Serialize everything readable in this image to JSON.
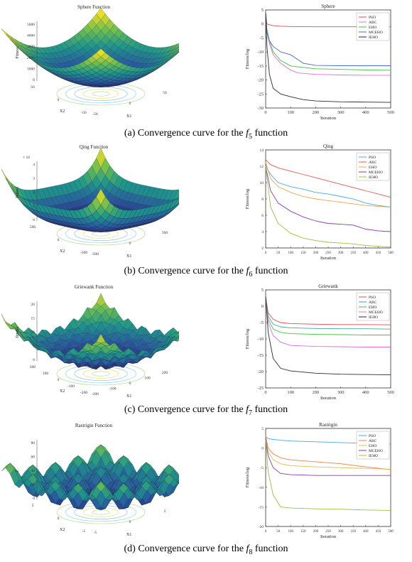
{
  "panels": [
    {
      "caption_prefix": "(a) Convergence curve for the ",
      "func_letter": "f",
      "func_index": "5",
      "caption_suffix": " function",
      "surface": {
        "title": "Sphere Function",
        "zlabel": "Fitness",
        "xlabel": "X1",
        "ylabel": "X2",
        "kind": "bowl",
        "z_ticks": [
          "5000",
          "4000",
          "3000",
          "2000",
          "1000",
          "0"
        ],
        "x_ticks": [
          "-50",
          "0",
          "50"
        ],
        "y_ticks": [
          "50",
          "0",
          "-50"
        ],
        "exponent": ""
      },
      "chart_data": {
        "type": "line",
        "title": "Sphere",
        "xlabel": "Iteration",
        "ylabel": "Fitness/log",
        "xlim": [
          0,
          500
        ],
        "ylim": [
          -30,
          5
        ],
        "xticks": [
          0,
          100,
          200,
          300,
          400,
          500
        ],
        "yticks": [
          5,
          0,
          -5,
          -10,
          -15,
          -20,
          -25,
          -30
        ],
        "legend_position": "top-right",
        "series": [
          {
            "name": "PSO",
            "color": "#e8484f",
            "x": [
              0,
              5,
              15,
              30,
              60,
              100,
              200,
              300,
              400,
              500
            ],
            "y": [
              4,
              0,
              -0.3,
              -0.6,
              -0.8,
              -0.9,
              -1.0,
              -1.0,
              -1.0,
              -1.0
            ]
          },
          {
            "name": "ABC",
            "color": "#e36cd8",
            "x": [
              0,
              5,
              15,
              30,
              60,
              100,
              130,
              200,
              300,
              400,
              500
            ],
            "y": [
              4,
              -3,
              -7,
              -11,
              -14,
              -16.5,
              -17.5,
              -18,
              -18.2,
              -18.3,
              -18.3
            ]
          },
          {
            "name": "EHO",
            "color": "#3ec43e",
            "x": [
              0,
              5,
              15,
              30,
              60,
              100,
              200,
              300,
              400,
              500
            ],
            "y": [
              4,
              -2,
              -6,
              -10,
              -13,
              -15,
              -16,
              -16.2,
              -16.4,
              -16.5
            ]
          },
          {
            "name": "MCEHO",
            "color": "#4a68d8",
            "x": [
              0,
              5,
              15,
              30,
              60,
              100,
              150,
              200,
              300,
              400,
              500
            ],
            "y": [
              4,
              -3,
              -6,
              -8,
              -10,
              -11,
              -14,
              -14.8,
              -14.9,
              -14.9,
              -14.9
            ]
          },
          {
            "name": "IEHO",
            "color": "#2b2b2b",
            "x": [
              0,
              5,
              15,
              30,
              60,
              100,
              150,
              200,
              300,
              400,
              500
            ],
            "y": [
              4,
              -8,
              -18,
              -23,
              -25,
              -26,
              -27,
              -27.5,
              -27.8,
              -27.9,
              -28
            ]
          }
        ]
      }
    },
    {
      "caption_prefix": "(b) Convergence curve for the ",
      "func_letter": "f",
      "func_index": "6",
      "caption_suffix": " function",
      "surface": {
        "title": "Qing Function",
        "zlabel": "fitness",
        "xlabel": "X1",
        "ylabel": "X2",
        "kind": "qing",
        "z_ticks": [
          "4",
          "3",
          "2",
          "1",
          "0"
        ],
        "x_ticks": [
          "-500",
          "0",
          "500"
        ],
        "y_ticks": [
          "500",
          "0",
          "-500"
        ],
        "exponent": "× 10"
      },
      "chart_data": {
        "type": "line",
        "title": "Qing",
        "xlabel": "Iteration",
        "ylabel": "Fitness/log",
        "xlim": [
          0,
          500
        ],
        "ylim": [
          2,
          14
        ],
        "xticks": [
          0,
          50,
          100,
          150,
          200,
          250,
          300,
          350,
          400,
          450,
          500
        ],
        "yticks": [
          14,
          12,
          10,
          8,
          6,
          4,
          2
        ],
        "legend_position": "top-right",
        "series": [
          {
            "name": "PSO",
            "color": "#4aa6e8",
            "x": [
              0,
              20,
              50,
              100,
              150,
              200,
              250,
              300,
              350,
              400,
              450,
              500
            ],
            "y": [
              12,
              11,
              10,
              9.5,
              9.2,
              8.8,
              8.6,
              8.3,
              8.0,
              7.5,
              7.2,
              7.0
            ]
          },
          {
            "name": "ABC",
            "color": "#e8584a",
            "x": [
              0,
              20,
              50,
              100,
              150,
              200,
              250,
              300,
              350,
              400,
              450,
              500
            ],
            "y": [
              12.8,
              12.2,
              11.8,
              11.4,
              11.0,
              10.6,
              10.2,
              9.8,
              9.4,
              9.0,
              8.6,
              8.2
            ]
          },
          {
            "name": "EHO",
            "color": "#e8a84a",
            "x": [
              0,
              20,
              50,
              100,
              150,
              200,
              250,
              300,
              350,
              400,
              450,
              500
            ],
            "y": [
              12.5,
              10.5,
              9.5,
              8.8,
              8.3,
              8.0,
              7.8,
              7.6,
              7.4,
              7.2,
              7.1,
              7.0
            ]
          },
          {
            "name": "MCEHO",
            "color": "#8a3ab0",
            "x": [
              0,
              20,
              50,
              100,
              150,
              200,
              250,
              300,
              350,
              400,
              450,
              500
            ],
            "y": [
              12,
              9,
              7.5,
              6.5,
              5.8,
              5.3,
              5.0,
              4.9,
              4.8,
              4.3,
              4.1,
              4.0
            ]
          },
          {
            "name": "IEHO",
            "color": "#9ac43e",
            "x": [
              0,
              20,
              50,
              100,
              150,
              200,
              250,
              300,
              350,
              400,
              450,
              500
            ],
            "y": [
              12,
              7,
              5,
              3.8,
              3.2,
              2.9,
              2.7,
              2.6,
              2.5,
              2.3,
              2.2,
              2.1
            ]
          }
        ]
      }
    },
    {
      "caption_prefix": "(c) Convergence curve for the ",
      "func_letter": "f",
      "func_index": "7",
      "caption_suffix": " function",
      "surface": {
        "title": "Griewank Function",
        "zlabel": "fitness",
        "xlabel": "X1",
        "ylabel": "X2",
        "kind": "griewank",
        "z_ticks": [
          "20",
          "15",
          "10",
          "5",
          "0"
        ],
        "x_ticks": [
          "-200",
          "-100",
          "0",
          "100",
          "200"
        ],
        "y_ticks": [
          "200",
          "100",
          "0",
          "-100",
          "-200"
        ],
        "exponent": ""
      },
      "chart_data": {
        "type": "line",
        "title": "Griewank",
        "xlabel": "Iteration",
        "ylabel": "Fitness/log",
        "xlim": [
          0,
          500
        ],
        "ylim": [
          -25,
          5
        ],
        "xticks": [
          0,
          100,
          200,
          300,
          400,
          500
        ],
        "yticks": [
          5,
          0,
          -5,
          -10,
          -15,
          -20,
          -25
        ],
        "legend_position": "top-right",
        "series": [
          {
            "name": "PSO",
            "color": "#e8484f",
            "x": [
              0,
              10,
              30,
              60,
              100,
              200,
              300,
              400,
              500
            ],
            "y": [
              3,
              -2,
              -4,
              -5,
              -5.3,
              -5.5,
              -5.6,
              -5.6,
              -5.7
            ]
          },
          {
            "name": "ABC",
            "color": "#3ea6a6",
            "x": [
              0,
              10,
              30,
              60,
              100,
              200,
              300,
              400,
              500
            ],
            "y": [
              3,
              -3,
              -5.5,
              -6.3,
              -6.6,
              -6.8,
              -6.9,
              -6.9,
              -7
            ]
          },
          {
            "name": "EHO",
            "color": "#3ec43e",
            "x": [
              0,
              10,
              30,
              60,
              100,
              200,
              300,
              400,
              500
            ],
            "y": [
              3,
              -4,
              -7,
              -8,
              -8.4,
              -8.6,
              -8.7,
              -8.8,
              -8.8
            ]
          },
          {
            "name": "MCEHO",
            "color": "#e36cd8",
            "x": [
              0,
              10,
              30,
              60,
              100,
              200,
              300,
              400,
              500
            ],
            "y": [
              3,
              -5,
              -9,
              -11,
              -12,
              -12.3,
              -12.4,
              -12.5,
              -12.5
            ]
          },
          {
            "name": "IEHO",
            "color": "#2b2b2b",
            "x": [
              0,
              10,
              30,
              60,
              100,
              200,
              300,
              400,
              500
            ],
            "y": [
              3,
              -8,
              -16,
              -19,
              -19.8,
              -20.5,
              -20.8,
              -20.9,
              -21
            ]
          }
        ]
      }
    },
    {
      "caption_prefix": "(d) Convergence curve for the ",
      "func_letter": "f",
      "func_index": "8",
      "caption_suffix": " function",
      "surface": {
        "title": "Rastrigin Function",
        "zlabel": "Z",
        "xlabel": "X1",
        "ylabel": "X2",
        "kind": "rastrigin",
        "z_ticks": [
          "80",
          "60",
          "40",
          "20",
          "0"
        ],
        "x_ticks": [
          "-5",
          "0",
          "5"
        ],
        "y_ticks": [
          "5",
          "0",
          "-5"
        ],
        "exponent": ""
      },
      "chart_data": {
        "type": "line",
        "title": "Rastrigin",
        "xlabel": "Iteration",
        "ylabel": "Fitness/log",
        "xlim": [
          0,
          500
        ],
        "ylim": [
          -20,
          5
        ],
        "xticks": [
          0,
          50,
          100,
          150,
          200,
          250,
          300,
          350,
          400,
          450,
          500
        ],
        "yticks": [
          5,
          0,
          -5,
          -10,
          -15,
          -20
        ],
        "legend_position": "top-right",
        "series": [
          {
            "name": "PSO",
            "color": "#4aa6e8",
            "x": [
              0,
              10,
              30,
              60,
              100,
              200,
              300,
              400,
              500
            ],
            "y": [
              3,
              2.4,
              2.2,
              2.0,
              1.8,
              1.6,
              1.4,
              1.2,
              1.0
            ]
          },
          {
            "name": "ABC",
            "color": "#e8844a",
            "x": [
              0,
              10,
              30,
              60,
              100,
              200,
              300,
              400,
              500
            ],
            "y": [
              3,
              0,
              -1.5,
              -2.5,
              -3,
              -3.5,
              -4,
              -4.8,
              -5.5
            ]
          },
          {
            "name": "EHO",
            "color": "#e8b84a",
            "x": [
              0,
              10,
              30,
              60,
              100,
              200,
              300,
              400,
              500
            ],
            "y": [
              2.5,
              -1,
              -3,
              -4,
              -4.5,
              -4.8,
              -5,
              -5.2,
              -5.4
            ]
          },
          {
            "name": "MCEHO",
            "color": "#8a3ab0",
            "x": [
              0,
              10,
              30,
              60,
              100,
              200,
              300,
              400,
              500
            ],
            "y": [
              2.5,
              -2,
              -5,
              -6.5,
              -6.8,
              -7,
              -7,
              -7,
              -7
            ]
          },
          {
            "name": "IEHO",
            "color": "#9ac43e",
            "x": [
              0,
              10,
              30,
              60,
              100,
              200,
              300,
              400,
              500
            ],
            "y": [
              2,
              -6,
              -12,
              -15,
              -15.3,
              -15.5,
              -15.6,
              -15.8,
              -15.9
            ]
          }
        ]
      }
    }
  ]
}
